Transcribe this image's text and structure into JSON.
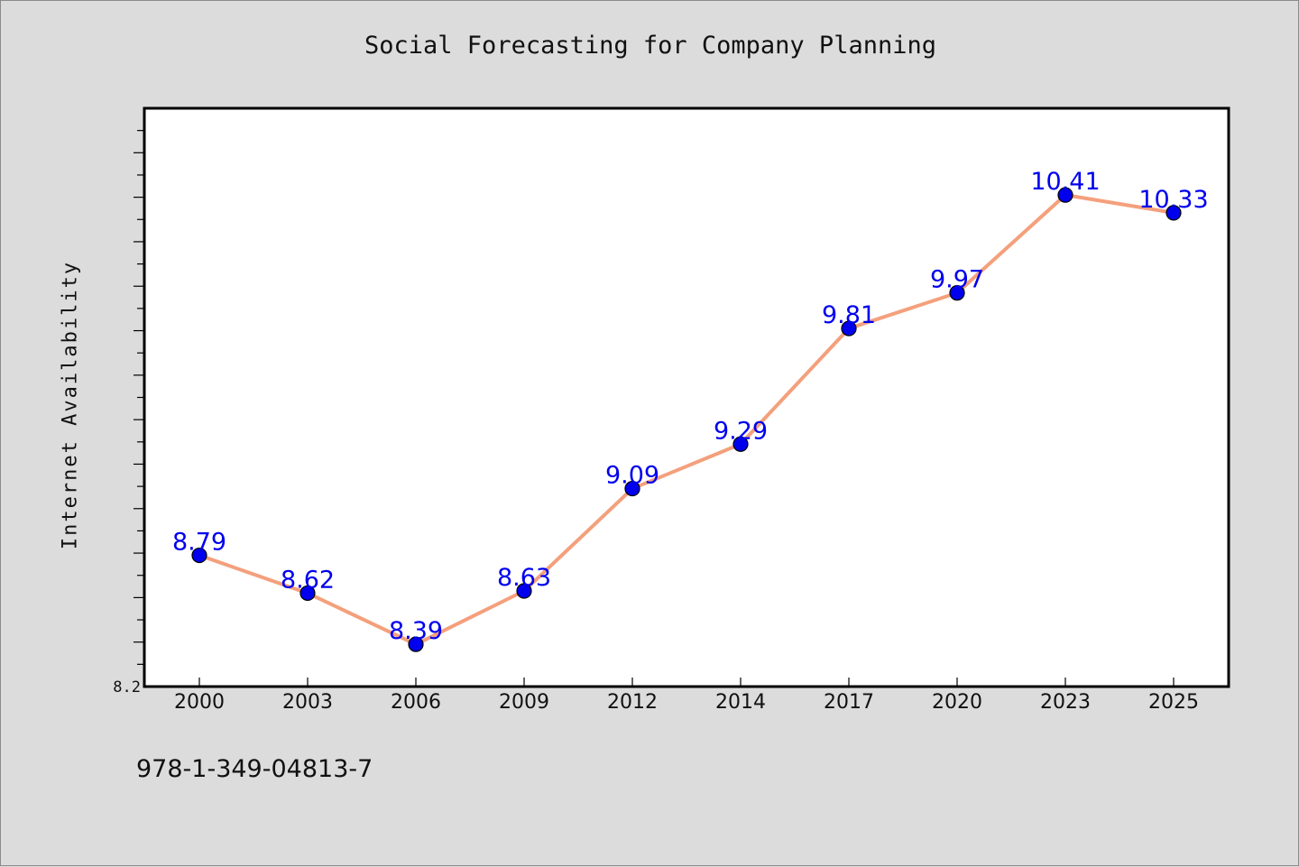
{
  "chart_data": {
    "type": "line",
    "title": "Social Forecasting for Company Planning",
    "xlabel": "",
    "ylabel": "Internet Availability",
    "categories": [
      "2000",
      "2003",
      "2006",
      "2009",
      "2012",
      "2014",
      "2017",
      "2020",
      "2023",
      "2025"
    ],
    "series": [
      {
        "values": [
          8.79,
          8.62,
          8.39,
          8.63,
          9.09,
          9.29,
          9.81,
          9.97,
          10.41,
          10.33
        ]
      }
    ],
    "data_labels": [
      "8.79",
      "8.62",
      "8.39",
      "8.63",
      "9.09",
      "9.29",
      "9.81",
      "9.97",
      "10.41",
      "10.33"
    ],
    "ylim": [
      8.2,
      10.8
    ],
    "ytick_labels": [
      "8.2"
    ],
    "grid": false,
    "legend": "none",
    "colors": {
      "line": "#f4a07c",
      "marker": "#0000ee",
      "label": "#0000ee",
      "plot_bg": "#ffffff",
      "figure_bg": "#dcdcdc"
    }
  },
  "footer": {
    "isbn": "978-1-349-04813-7"
  }
}
